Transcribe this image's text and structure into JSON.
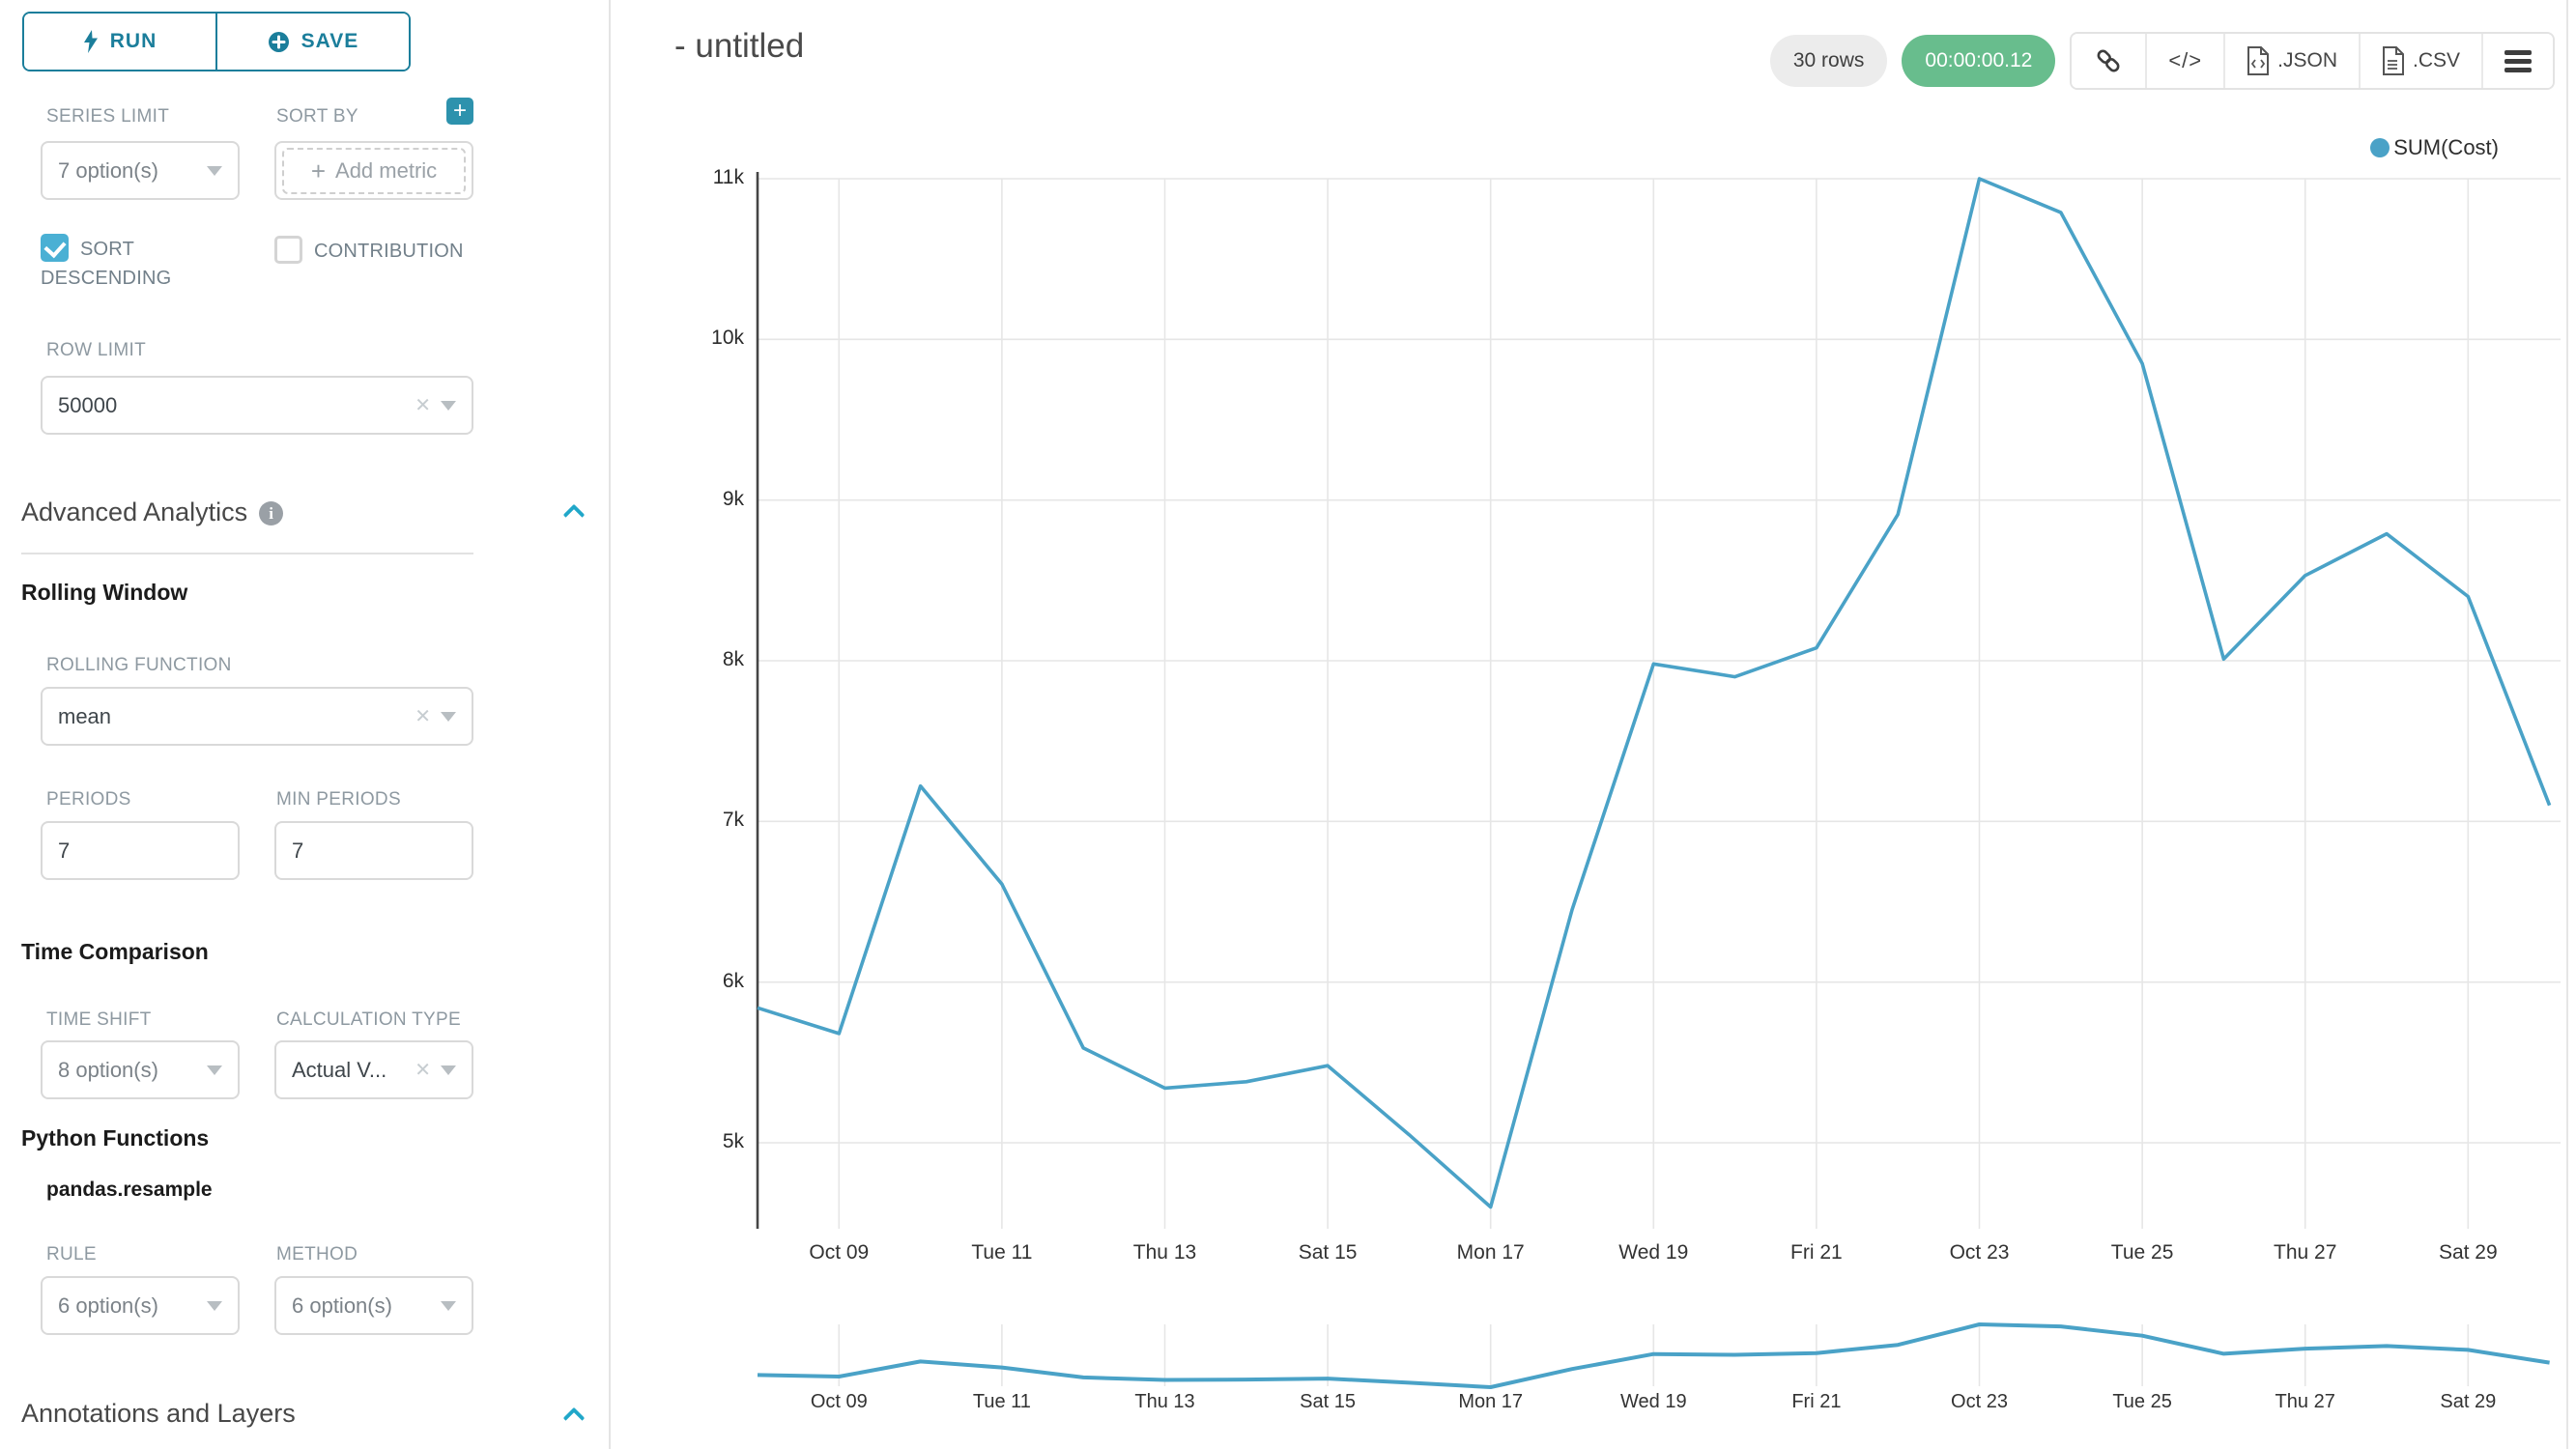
{
  "sidebar": {
    "run_label": "RUN",
    "save_label": "SAVE",
    "series_limit": {
      "label": "SERIES LIMIT",
      "value": "7 option(s)"
    },
    "sort_by": {
      "label": "SORT BY",
      "placeholder": "Add metric"
    },
    "sort_descending_label": "SORT DESCENDING",
    "contribution_label": "CONTRIBUTION",
    "row_limit": {
      "label": "ROW LIMIT",
      "value": "50000"
    },
    "advanced_analytics_title": "Advanced Analytics",
    "rolling_window": {
      "title": "Rolling Window",
      "rolling_function": {
        "label": "ROLLING FUNCTION",
        "value": "mean"
      },
      "periods": {
        "label": "PERIODS",
        "value": "7"
      },
      "min_periods": {
        "label": "MIN PERIODS",
        "value": "7"
      }
    },
    "time_comparison": {
      "title": "Time Comparison",
      "time_shift": {
        "label": "TIME SHIFT",
        "value": "8 option(s)"
      },
      "calculation_type": {
        "label": "CALCULATION TYPE",
        "value": "Actual V..."
      }
    },
    "python_functions": {
      "title": "Python Functions",
      "subtitle": "pandas.resample",
      "rule": {
        "label": "RULE",
        "value": "6 option(s)"
      },
      "method": {
        "label": "METHOD",
        "value": "6 option(s)"
      }
    },
    "annotations_title": "Annotations and Layers"
  },
  "header": {
    "title": "- untitled",
    "rows_badge": "30 rows",
    "timer_badge": "00:00:00.12",
    "json_label": ".JSON",
    "csv_label": ".CSV"
  },
  "icons": {
    "code": "</>"
  },
  "chart_data": {
    "type": "line",
    "title": "",
    "legend": [
      {
        "name": "SUM(Cost)",
        "color": "#4aa2c7"
      }
    ],
    "x": [
      "Oct 08",
      "Oct 09",
      "Oct 10",
      "Oct 11",
      "Oct 12",
      "Oct 13",
      "Oct 14",
      "Oct 15",
      "Oct 16",
      "Oct 17",
      "Oct 18",
      "Oct 19",
      "Oct 20",
      "Oct 21",
      "Oct 22",
      "Oct 23",
      "Oct 24",
      "Oct 25",
      "Oct 26",
      "Oct 27",
      "Oct 28",
      "Oct 29",
      "Oct 30"
    ],
    "series": [
      {
        "name": "SUM(Cost)",
        "values": [
          5840,
          5680,
          7220,
          6610,
          5590,
          5340,
          5380,
          5480,
          5050,
          4600,
          6450,
          7980,
          7900,
          8080,
          8910,
          11000,
          10790,
          9850,
          8010,
          8530,
          8790,
          8400,
          7100
        ]
      }
    ],
    "x_tick_labels": [
      "Oct 09",
      "Tue 11",
      "Thu 13",
      "Sat 15",
      "Mon 17",
      "Wed 19",
      "Fri 21",
      "Oct 23",
      "Tue 25",
      "Thu 27",
      "Sat 29"
    ],
    "x_tick_indices": [
      1,
      3,
      5,
      7,
      9,
      11,
      13,
      15,
      17,
      19,
      21
    ],
    "y_ticks": [
      5000,
      6000,
      7000,
      8000,
      9000,
      10000,
      11000
    ],
    "y_tick_labels": [
      "5k",
      "6k",
      "7k",
      "8k",
      "9k",
      "10k",
      "11k"
    ],
    "ylim": [
      4450,
      11000
    ],
    "grid": true,
    "legend_position": "top-right",
    "has_minimap": true
  }
}
